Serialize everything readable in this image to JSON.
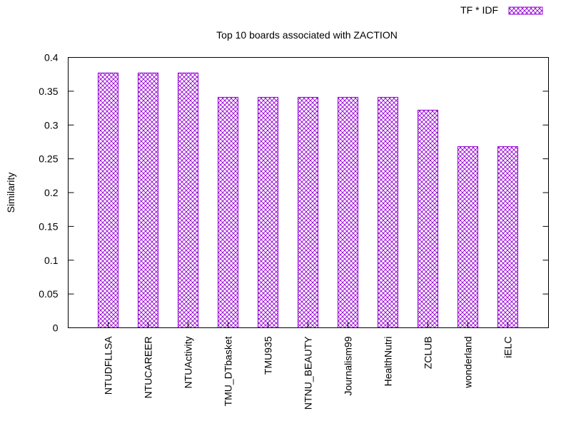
{
  "chart_data": {
    "type": "bar",
    "title": "Top 10 boards associated with ZACTION",
    "xlabel": "",
    "ylabel": "Similarity",
    "ylim": [
      0,
      0.4
    ],
    "yticks": [
      0,
      0.05,
      0.1,
      0.15,
      0.2,
      0.25,
      0.3,
      0.35,
      0.4
    ],
    "ytick_labels": [
      "0",
      "0.05",
      "0.1",
      "0.15",
      "0.2",
      "0.25",
      "0.3",
      "0.35",
      "0.4"
    ],
    "grid": false,
    "legend_position": "top-right",
    "categories": [
      "NTUDFLLSA",
      "NTUCAREER",
      "NTUActivity",
      "TMU_DTbasket",
      "TMU935",
      "NTNU_BEAUTY",
      "Journalism99",
      "HealthNutri",
      "ZCLUB",
      "wonderland",
      "iELC"
    ],
    "series": [
      {
        "name": "TF * IDF",
        "color": "#9400d3",
        "pattern": "crosshatch",
        "values": [
          0.377,
          0.377,
          0.377,
          0.341,
          0.341,
          0.341,
          0.341,
          0.341,
          0.322,
          0.268,
          0.268
        ]
      }
    ]
  }
}
